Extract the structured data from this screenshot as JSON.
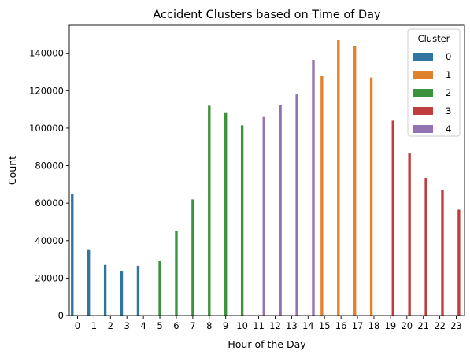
{
  "chart_data": {
    "type": "bar",
    "title": "Accident Clusters based on Time of Day",
    "xlabel": "Hour of the Day",
    "ylabel": "Count",
    "ylim": [
      0,
      155000
    ],
    "yticks": [
      0,
      20000,
      40000,
      60000,
      80000,
      100000,
      120000,
      140000
    ],
    "ytick_labels": [
      "0",
      "20000",
      "40000",
      "60000",
      "80000",
      "100000",
      "120000",
      "140000"
    ],
    "categories": [
      "0",
      "1",
      "2",
      "3",
      "4",
      "5",
      "6",
      "7",
      "8",
      "9",
      "10",
      "11",
      "12",
      "13",
      "14",
      "15",
      "16",
      "17",
      "18",
      "19",
      "20",
      "21",
      "22",
      "23"
    ],
    "series": [
      {
        "name": "0",
        "color": "#3274a1",
        "values": [
          65000,
          35000,
          27000,
          23500,
          26500,
          null,
          null,
          null,
          null,
          null,
          null,
          null,
          null,
          null,
          null,
          null,
          null,
          null,
          null,
          null,
          null,
          null,
          null,
          null
        ]
      },
      {
        "name": "1",
        "color": "#e1812c",
        "values": [
          null,
          null,
          null,
          null,
          null,
          null,
          null,
          null,
          null,
          null,
          null,
          null,
          null,
          null,
          null,
          128000,
          147000,
          144000,
          127000,
          null,
          null,
          null,
          null,
          null
        ]
      },
      {
        "name": "2",
        "color": "#3a923a",
        "values": [
          null,
          null,
          null,
          null,
          null,
          29000,
          45000,
          62000,
          112000,
          108500,
          101500,
          null,
          null,
          null,
          null,
          null,
          null,
          null,
          null,
          null,
          null,
          null,
          null,
          null
        ]
      },
      {
        "name": "3",
        "color": "#c03d3e",
        "values": [
          null,
          null,
          null,
          null,
          null,
          null,
          null,
          null,
          null,
          null,
          null,
          null,
          null,
          null,
          null,
          null,
          null,
          null,
          null,
          104000,
          86500,
          73500,
          67000,
          56500
        ]
      },
      {
        "name": "4",
        "color": "#9372b2",
        "values": [
          null,
          null,
          null,
          null,
          null,
          null,
          null,
          null,
          null,
          null,
          null,
          106000,
          112500,
          118000,
          136500,
          null,
          null,
          null,
          null,
          null,
          null,
          null,
          null,
          null
        ]
      }
    ],
    "legend": {
      "title": "Cluster",
      "placement": "top-right"
    },
    "grid": false
  }
}
